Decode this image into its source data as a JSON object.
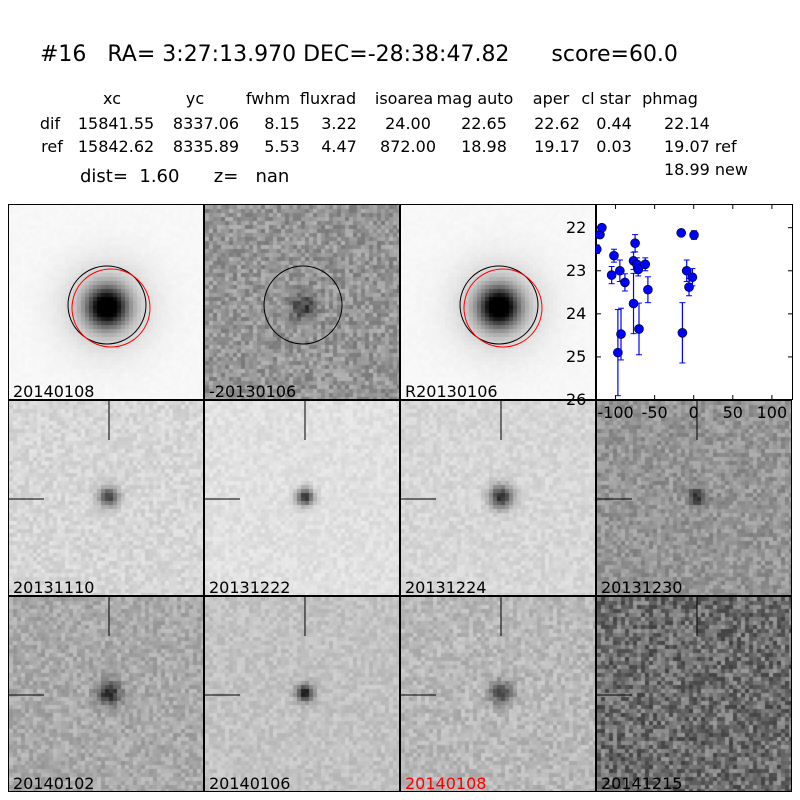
{
  "header": {
    "title": "#16   RA= 3:27:13.970 DEC=-28:38:47.82      score=60.0",
    "columns": [
      "xc",
      "yc",
      "fwhm",
      "fluxrad",
      "isoarea",
      "mag auto",
      "aper",
      "cl star",
      "phmag"
    ],
    "rows": [
      {
        "label": "dif",
        "values": [
          "15841.55",
          "8337.06",
          "8.15",
          "3.22",
          "24.00",
          "22.65",
          "22.62",
          "0.44",
          "22.14"
        ]
      },
      {
        "label": "ref",
        "values": [
          "15842.62",
          "8335.89",
          "5.53",
          "4.47",
          "872.00",
          "18.98",
          "19.17",
          "0.03",
          "19.07 ref"
        ]
      }
    ],
    "phmag_new": "18.99 new",
    "dist_text": "dist=  1.60      z=   nan"
  },
  "panels": [
    {
      "label": "20140108",
      "kind": "new"
    },
    {
      "label": "-20130106",
      "kind": "diff"
    },
    {
      "label": "R20130106",
      "kind": "ref"
    },
    {
      "label": "20131110",
      "kind": "epoch"
    },
    {
      "label": "20131222",
      "kind": "epoch"
    },
    {
      "label": "20131224",
      "kind": "epoch"
    },
    {
      "label": "20131230",
      "kind": "epoch"
    },
    {
      "label": "20140102",
      "kind": "epoch"
    },
    {
      "label": "20140106",
      "kind": "epoch"
    },
    {
      "label": "20140108",
      "kind": "epoch",
      "color": "#ff0000"
    },
    {
      "label": "20141215",
      "kind": "epoch"
    }
  ],
  "chart_data": {
    "type": "scatter",
    "title": "",
    "xlabel": "",
    "ylabel": "",
    "xlim": [
      -125,
      127
    ],
    "ylim": [
      26,
      21.45
    ],
    "y_inverted": true,
    "xticks": [
      "-100",
      "-50",
      "0",
      "50",
      "100"
    ],
    "xtick_values": [
      -100,
      -50,
      0,
      50,
      100
    ],
    "yticks": [
      "22",
      "23",
      "24",
      "25",
      "26"
    ],
    "ytick_values": [
      22,
      23,
      24,
      25,
      26
    ],
    "marker_color": "#0000ff",
    "points": [
      {
        "x": -124,
        "y": 22.5,
        "err": 0.1
      },
      {
        "x": -120,
        "y": 22.16,
        "err": 0.08
      },
      {
        "x": -117.5,
        "y": 22.0,
        "err": 0.05
      },
      {
        "x": -105,
        "y": 23.1,
        "err": 0.2
      },
      {
        "x": -102,
        "y": 22.65,
        "err": 0.15
      },
      {
        "x": -97,
        "y": 24.9,
        "err": 1.0
      },
      {
        "x": -94.5,
        "y": 23.0,
        "err": 0.25
      },
      {
        "x": -93,
        "y": 24.47,
        "err": 0.6
      },
      {
        "x": -88,
        "y": 23.27,
        "err": 0.2
      },
      {
        "x": -77,
        "y": 22.77,
        "err": 0.2
      },
      {
        "x": -75,
        "y": 22.36,
        "err": 0.2
      },
      {
        "x": -77,
        "y": 23.76,
        "err": 0.7
      },
      {
        "x": -72.7,
        "y": 22.85,
        "err": 0.15
      },
      {
        "x": -71,
        "y": 22.97,
        "err": 0.15
      },
      {
        "x": -70,
        "y": 24.35,
        "err": 0.6
      },
      {
        "x": -62,
        "y": 22.85,
        "err": 0.15
      },
      {
        "x": -58.6,
        "y": 23.44,
        "err": 0.3
      },
      {
        "x": -16,
        "y": 22.12,
        "err": 0.05
      },
      {
        "x": -14.5,
        "y": 24.44,
        "err": 0.7
      },
      {
        "x": -9,
        "y": 23.0,
        "err": 0.25
      },
      {
        "x": -6,
        "y": 23.38,
        "err": 0.2
      },
      {
        "x": -1.7,
        "y": 23.15,
        "err": 0.2
      },
      {
        "x": 0.4,
        "y": 22.17,
        "err": 0.1
      }
    ]
  }
}
